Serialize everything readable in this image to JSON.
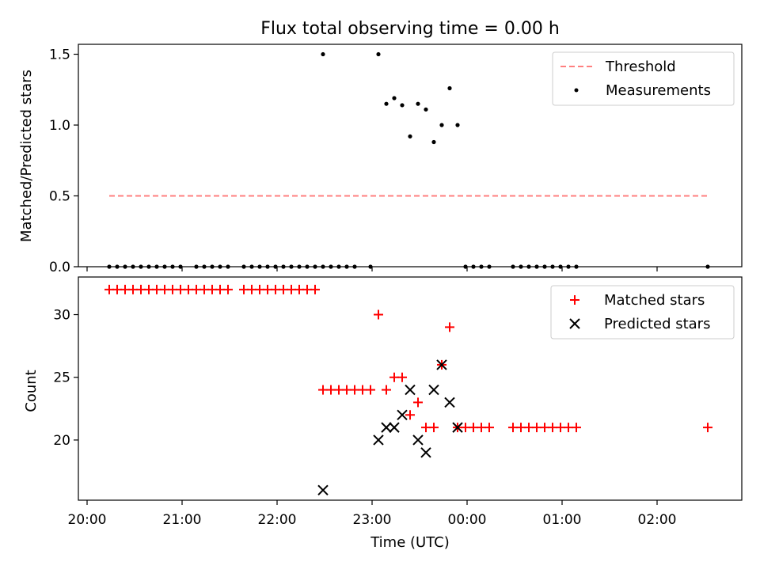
{
  "chart_data": [
    {
      "type": "scatter",
      "title": "Flux total observing time = 0.00 h",
      "ylabel": "Matched/Predicted stars",
      "ylim": [
        0,
        1.57
      ],
      "yticks": [
        "0.0",
        "0.5",
        "1.0",
        "1.5"
      ],
      "threshold": {
        "name": "Threshold",
        "value": 0.5,
        "x_start": "20:14",
        "x_end": "02:32",
        "color": "#ff7f7f"
      },
      "legend": {
        "placement": "top-right",
        "entries": [
          "Threshold",
          "Measurements"
        ]
      },
      "series": [
        {
          "name": "Measurements",
          "color": "#000000",
          "points": [
            [
              "20:14",
              0
            ],
            [
              "20:19",
              0
            ],
            [
              "20:24",
              0
            ],
            [
              "20:29",
              0
            ],
            [
              "20:34",
              0
            ],
            [
              "20:39",
              0
            ],
            [
              "20:44",
              0
            ],
            [
              "20:49",
              0
            ],
            [
              "20:54",
              0
            ],
            [
              "20:59",
              0
            ],
            [
              "21:09",
              0
            ],
            [
              "21:14",
              0
            ],
            [
              "21:19",
              0
            ],
            [
              "21:24",
              0
            ],
            [
              "21:29",
              0
            ],
            [
              "21:39",
              0
            ],
            [
              "21:44",
              0
            ],
            [
              "21:49",
              0
            ],
            [
              "21:54",
              0
            ],
            [
              "21:59",
              0
            ],
            [
              "22:04",
              0
            ],
            [
              "22:09",
              0
            ],
            [
              "22:14",
              0
            ],
            [
              "22:19",
              0
            ],
            [
              "22:24",
              0
            ],
            [
              "22:29",
              0
            ],
            [
              "22:34",
              0
            ],
            [
              "22:39",
              0
            ],
            [
              "22:44",
              0
            ],
            [
              "22:49",
              0
            ],
            [
              "22:59",
              0
            ],
            [
              "22:29",
              1.5
            ],
            [
              "23:04",
              1.5
            ],
            [
              "23:09",
              1.15
            ],
            [
              "23:14",
              1.19
            ],
            [
              "23:19",
              1.14
            ],
            [
              "23:24",
              0.92
            ],
            [
              "23:29",
              1.15
            ],
            [
              "23:34",
              1.11
            ],
            [
              "23:39",
              0.88
            ],
            [
              "23:44",
              1.0
            ],
            [
              "23:49",
              1.26
            ],
            [
              "23:54",
              1.0
            ],
            [
              "23:59",
              0
            ],
            [
              "00:04",
              0
            ],
            [
              "00:09",
              0
            ],
            [
              "00:14",
              0
            ],
            [
              "00:29",
              0
            ],
            [
              "00:34",
              0
            ],
            [
              "00:39",
              0
            ],
            [
              "00:44",
              0
            ],
            [
              "00:49",
              0
            ],
            [
              "00:54",
              0
            ],
            [
              "00:59",
              0
            ],
            [
              "01:04",
              0
            ],
            [
              "01:09",
              0
            ],
            [
              "02:32",
              0
            ]
          ]
        }
      ]
    },
    {
      "type": "scatter",
      "xlabel": "Time (UTC)",
      "ylabel": "Count",
      "ylim": [
        15.2,
        33.0
      ],
      "yticks": [
        "20",
        "25",
        "30"
      ],
      "xticks": [
        "20:00",
        "21:00",
        "22:00",
        "23:00",
        "00:00",
        "01:00",
        "02:00"
      ],
      "legend": {
        "placement": "top-right",
        "entries": [
          "Matched stars",
          "Predicted stars"
        ]
      },
      "series": [
        {
          "name": "Matched stars",
          "marker": "+",
          "color": "#ff0000",
          "points": [
            [
              "20:14",
              32
            ],
            [
              "20:19",
              32
            ],
            [
              "20:24",
              32
            ],
            [
              "20:29",
              32
            ],
            [
              "20:34",
              32
            ],
            [
              "20:39",
              32
            ],
            [
              "20:44",
              32
            ],
            [
              "20:49",
              32
            ],
            [
              "20:54",
              32
            ],
            [
              "20:59",
              32
            ],
            [
              "21:04",
              32
            ],
            [
              "21:09",
              32
            ],
            [
              "21:14",
              32
            ],
            [
              "21:19",
              32
            ],
            [
              "21:24",
              32
            ],
            [
              "21:29",
              32
            ],
            [
              "21:39",
              32
            ],
            [
              "21:44",
              32
            ],
            [
              "21:49",
              32
            ],
            [
              "21:54",
              32
            ],
            [
              "21:59",
              32
            ],
            [
              "22:04",
              32
            ],
            [
              "22:09",
              32
            ],
            [
              "22:14",
              32
            ],
            [
              "22:19",
              32
            ],
            [
              "22:24",
              32
            ],
            [
              "22:29",
              24
            ],
            [
              "22:34",
              24
            ],
            [
              "22:39",
              24
            ],
            [
              "22:44",
              24
            ],
            [
              "22:49",
              24
            ],
            [
              "22:54",
              24
            ],
            [
              "22:59",
              24
            ],
            [
              "23:04",
              30
            ],
            [
              "23:09",
              24
            ],
            [
              "23:14",
              25
            ],
            [
              "23:19",
              25
            ],
            [
              "23:24",
              22
            ],
            [
              "23:29",
              23
            ],
            [
              "23:34",
              21
            ],
            [
              "23:39",
              21
            ],
            [
              "23:44",
              26
            ],
            [
              "23:49",
              29
            ],
            [
              "23:54",
              21
            ],
            [
              "23:59",
              21
            ],
            [
              "00:04",
              21
            ],
            [
              "00:09",
              21
            ],
            [
              "00:14",
              21
            ],
            [
              "00:29",
              21
            ],
            [
              "00:34",
              21
            ],
            [
              "00:39",
              21
            ],
            [
              "00:44",
              21
            ],
            [
              "00:49",
              21
            ],
            [
              "00:54",
              21
            ],
            [
              "00:59",
              21
            ],
            [
              "01:04",
              21
            ],
            [
              "01:09",
              21
            ],
            [
              "02:32",
              21
            ]
          ]
        },
        {
          "name": "Predicted stars",
          "marker": "x",
          "color": "#000000",
          "points": [
            [
              "22:29",
              16
            ],
            [
              "23:04",
              20
            ],
            [
              "23:09",
              21
            ],
            [
              "23:14",
              21
            ],
            [
              "23:19",
              22
            ],
            [
              "23:24",
              24
            ],
            [
              "23:29",
              20
            ],
            [
              "23:34",
              19
            ],
            [
              "23:39",
              24
            ],
            [
              "23:44",
              26
            ],
            [
              "23:49",
              23
            ],
            [
              "23:54",
              21
            ]
          ]
        }
      ]
    }
  ]
}
